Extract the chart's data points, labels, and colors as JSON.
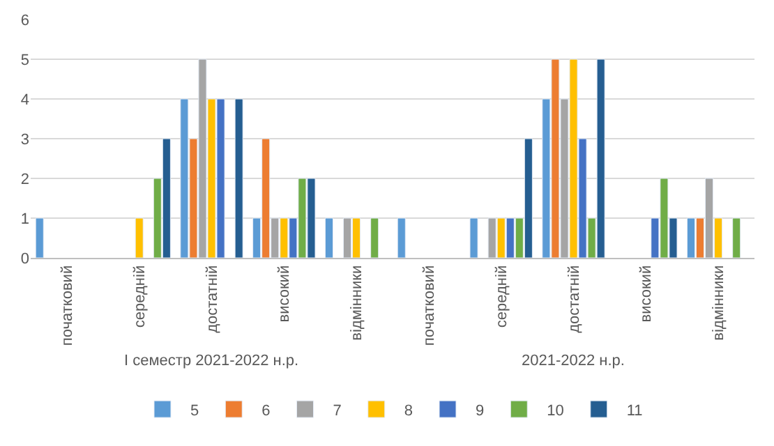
{
  "chart_data": {
    "type": "bar",
    "categories": [
      "початковий",
      "середній",
      "достатній",
      "високий",
      "відмінники",
      "початковий",
      "середній",
      "достатній",
      "високий",
      "відмінники"
    ],
    "annotations": [
      "I семестр 2021-2022 н.р.",
      "2021-2022 н.р."
    ],
    "series": [
      {
        "name": "5",
        "color": "#5b9bd5",
        "values": [
          1,
          null,
          4,
          1,
          1,
          1,
          1,
          4,
          null,
          1
        ]
      },
      {
        "name": "6",
        "color": "#ed7d31",
        "values": [
          null,
          null,
          3,
          3,
          null,
          null,
          null,
          5,
          null,
          1
        ]
      },
      {
        "name": "7",
        "color": "#a5a5a5",
        "values": [
          null,
          null,
          5,
          1,
          1,
          null,
          1,
          4,
          null,
          2
        ]
      },
      {
        "name": "8",
        "color": "#ffc000",
        "values": [
          null,
          1,
          4,
          1,
          1,
          null,
          1,
          5,
          null,
          1
        ]
      },
      {
        "name": "9",
        "color": "#4472c4",
        "values": [
          null,
          null,
          4,
          1,
          null,
          null,
          1,
          3,
          1,
          null
        ]
      },
      {
        "name": "10",
        "color": "#70ad47",
        "values": [
          null,
          2,
          null,
          2,
          1,
          null,
          1,
          1,
          2,
          1
        ]
      },
      {
        "name": "11",
        "color": "#255e91",
        "values": [
          null,
          3,
          4,
          2,
          null,
          null,
          3,
          5,
          1,
          null
        ]
      }
    ],
    "ylim": [
      0,
      6
    ],
    "yticks": [
      0,
      1,
      2,
      3,
      4,
      5,
      6
    ],
    "grid": "y",
    "legend": "bottom"
  }
}
